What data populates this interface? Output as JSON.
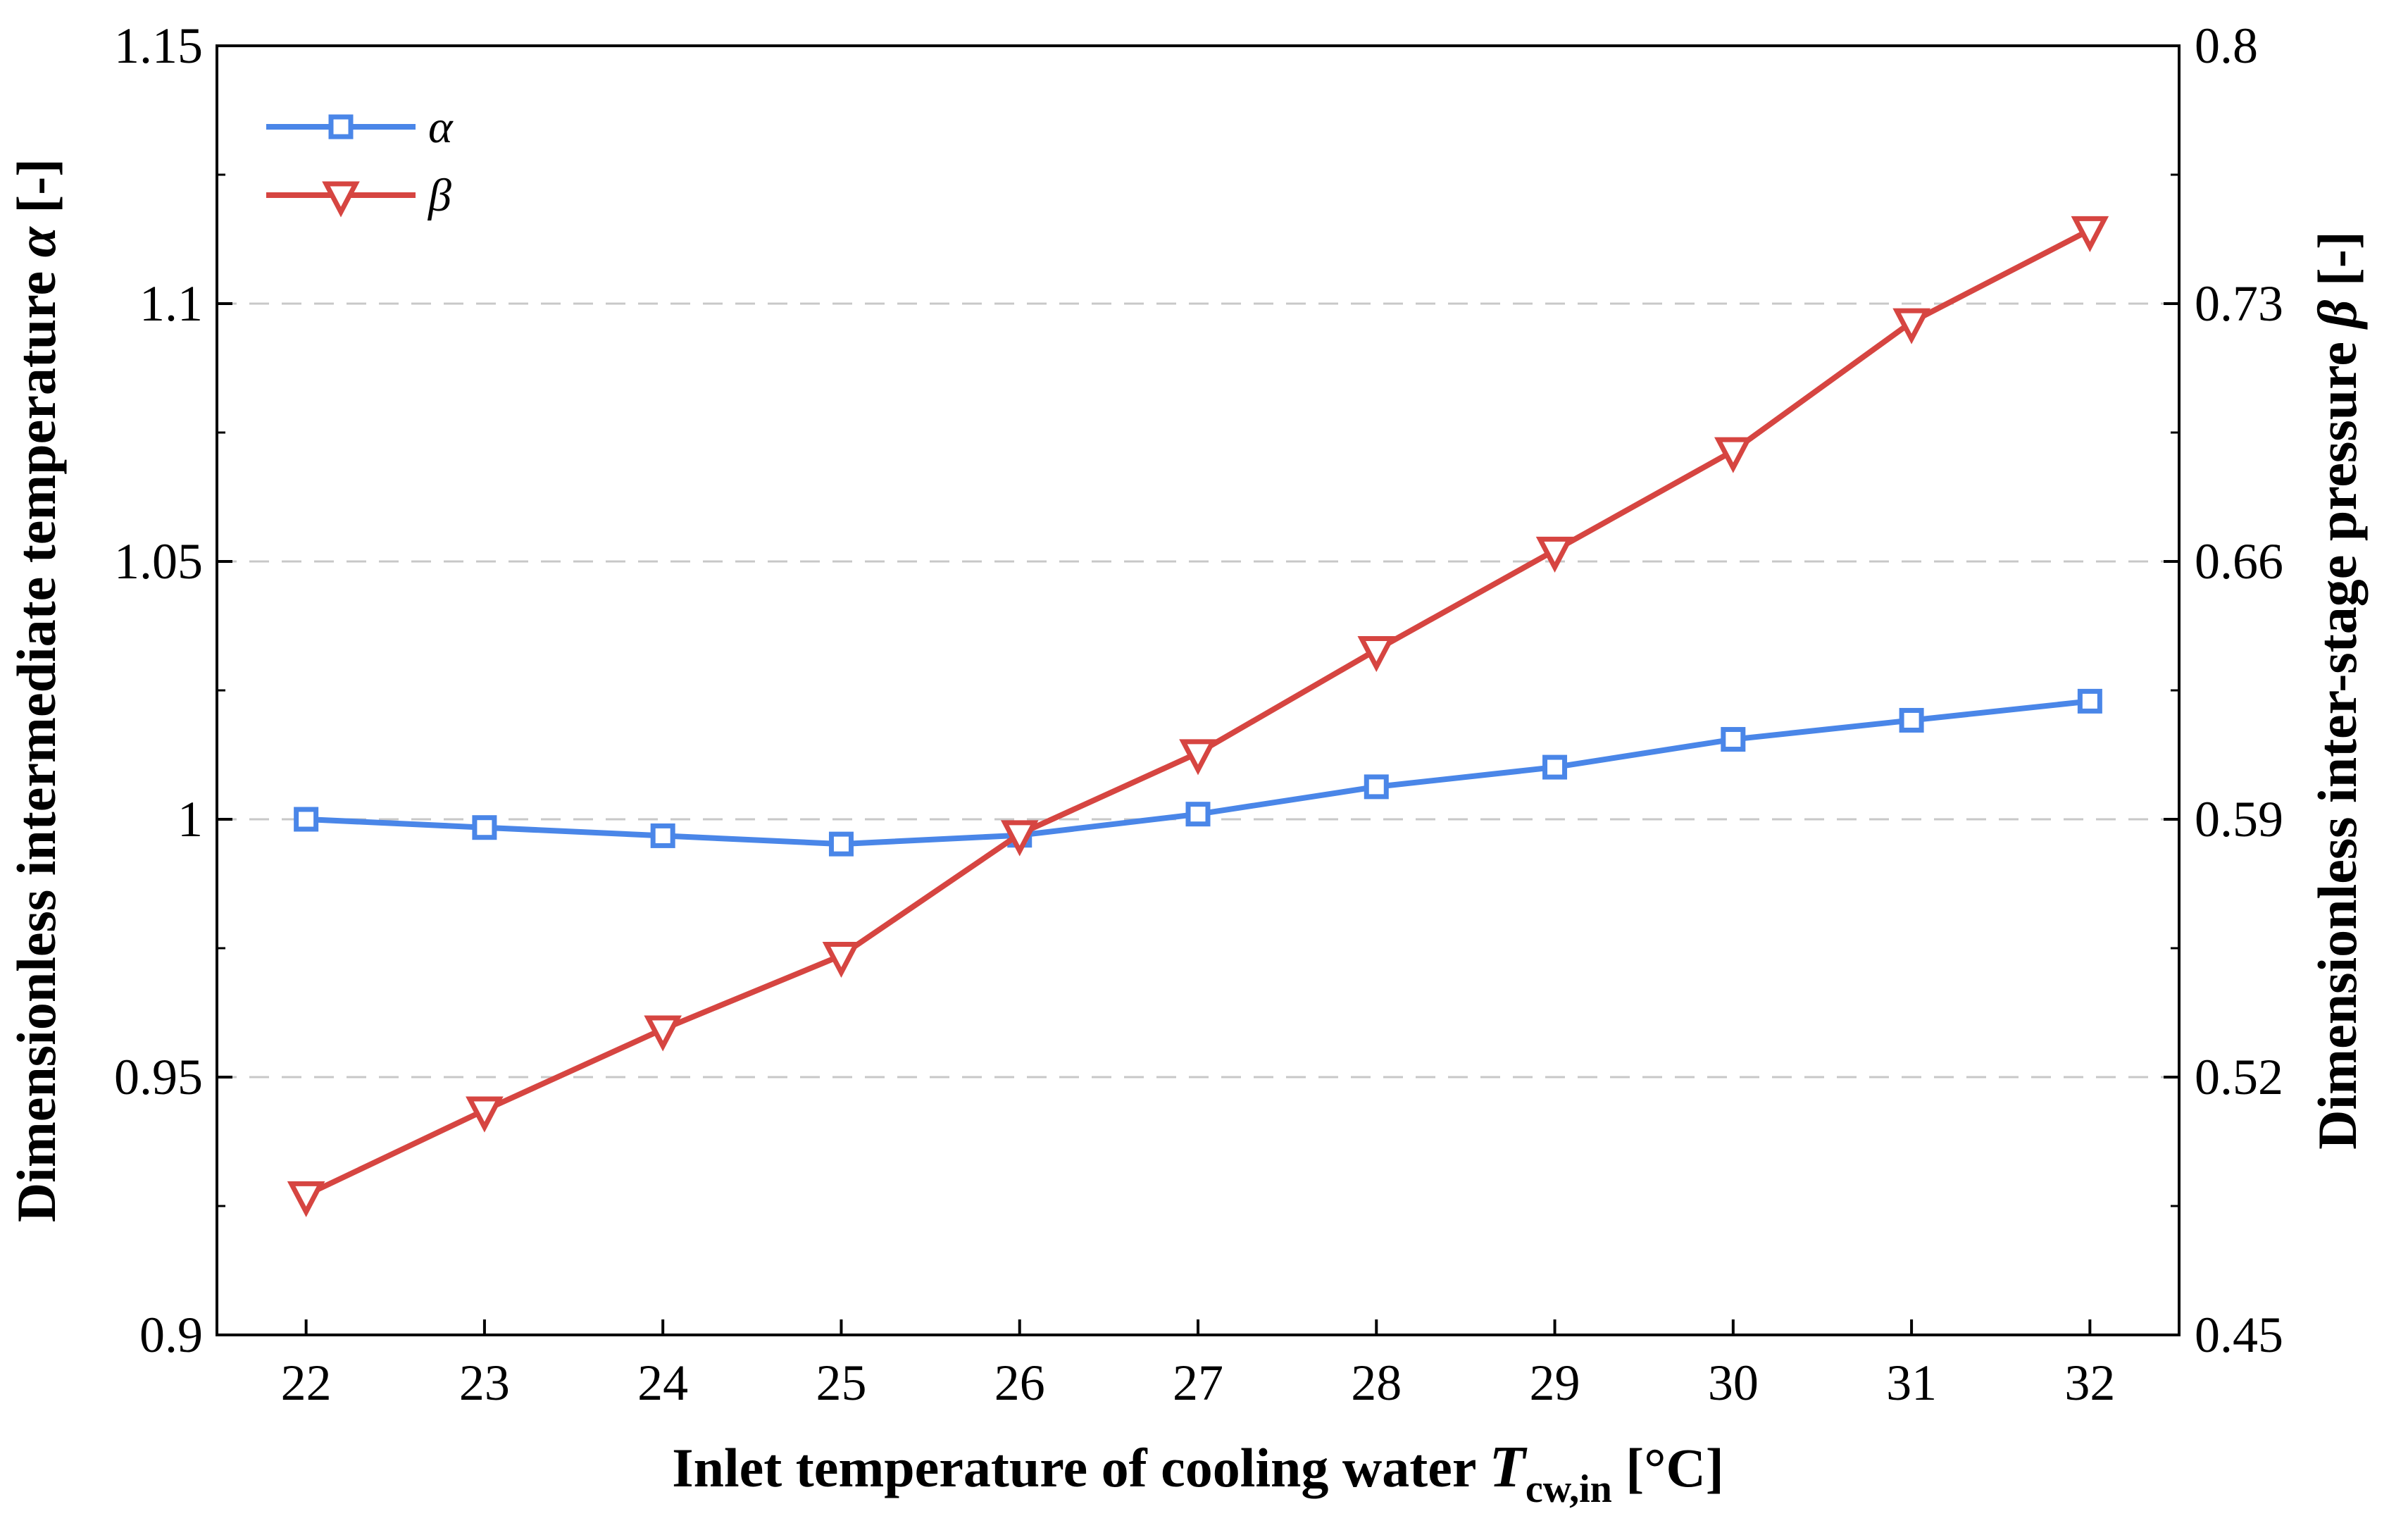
{
  "chart_data": {
    "type": "line",
    "x": [
      22,
      23,
      24,
      25,
      26,
      27,
      28,
      29,
      30,
      31,
      32
    ],
    "x_tick_labels": [
      "22",
      "23",
      "24",
      "25",
      "26",
      "27",
      "28",
      "29",
      "30",
      "31",
      "32"
    ],
    "xlim": [
      21.5,
      32.5
    ],
    "xlabel": {
      "prefix": "Inlet temperature of cooling water ",
      "symbol": "T",
      "subscript": "cw,in",
      "suffix": " [°C]"
    },
    "y_left": {
      "lim": [
        0.9,
        1.15
      ],
      "ticks": [
        0.9,
        0.95,
        1.0,
        1.05,
        1.1,
        1.15
      ],
      "tick_labels": [
        "0.9",
        "0.95",
        "1",
        "1.05",
        "1.1",
        "1.15"
      ],
      "label_prefix": "Dimensionless intermediate temperature ",
      "label_symbol": "α",
      "label_suffix": " [-]"
    },
    "y_right": {
      "lim": [
        0.45,
        0.8
      ],
      "ticks": [
        0.45,
        0.52,
        0.59,
        0.66,
        0.73,
        0.8
      ],
      "tick_labels": [
        "0.45",
        "0.52",
        "0.59",
        "0.66",
        "0.73",
        "0.8"
      ],
      "label_prefix": "Dimensionless inter-stage pressure ",
      "label_symbol": "β",
      "label_suffix": " [-]"
    },
    "grid": "horizontal dashed",
    "legend_position": "top-left",
    "series": [
      {
        "name": "α",
        "axis": "left",
        "marker": "square",
        "color": "#4a86e8",
        "values": [
          1.0,
          0.9984,
          0.9968,
          0.9952,
          0.9969,
          1.001,
          1.0063,
          1.0101,
          1.0155,
          1.0192,
          1.0229
        ]
      },
      {
        "name": "β",
        "axis": "right",
        "marker": "triangle-down",
        "color": "#d64541",
        "values": [
          0.488,
          0.511,
          0.533,
          0.553,
          0.586,
          0.608,
          0.636,
          0.663,
          0.69,
          0.725,
          0.75
        ]
      }
    ]
  }
}
